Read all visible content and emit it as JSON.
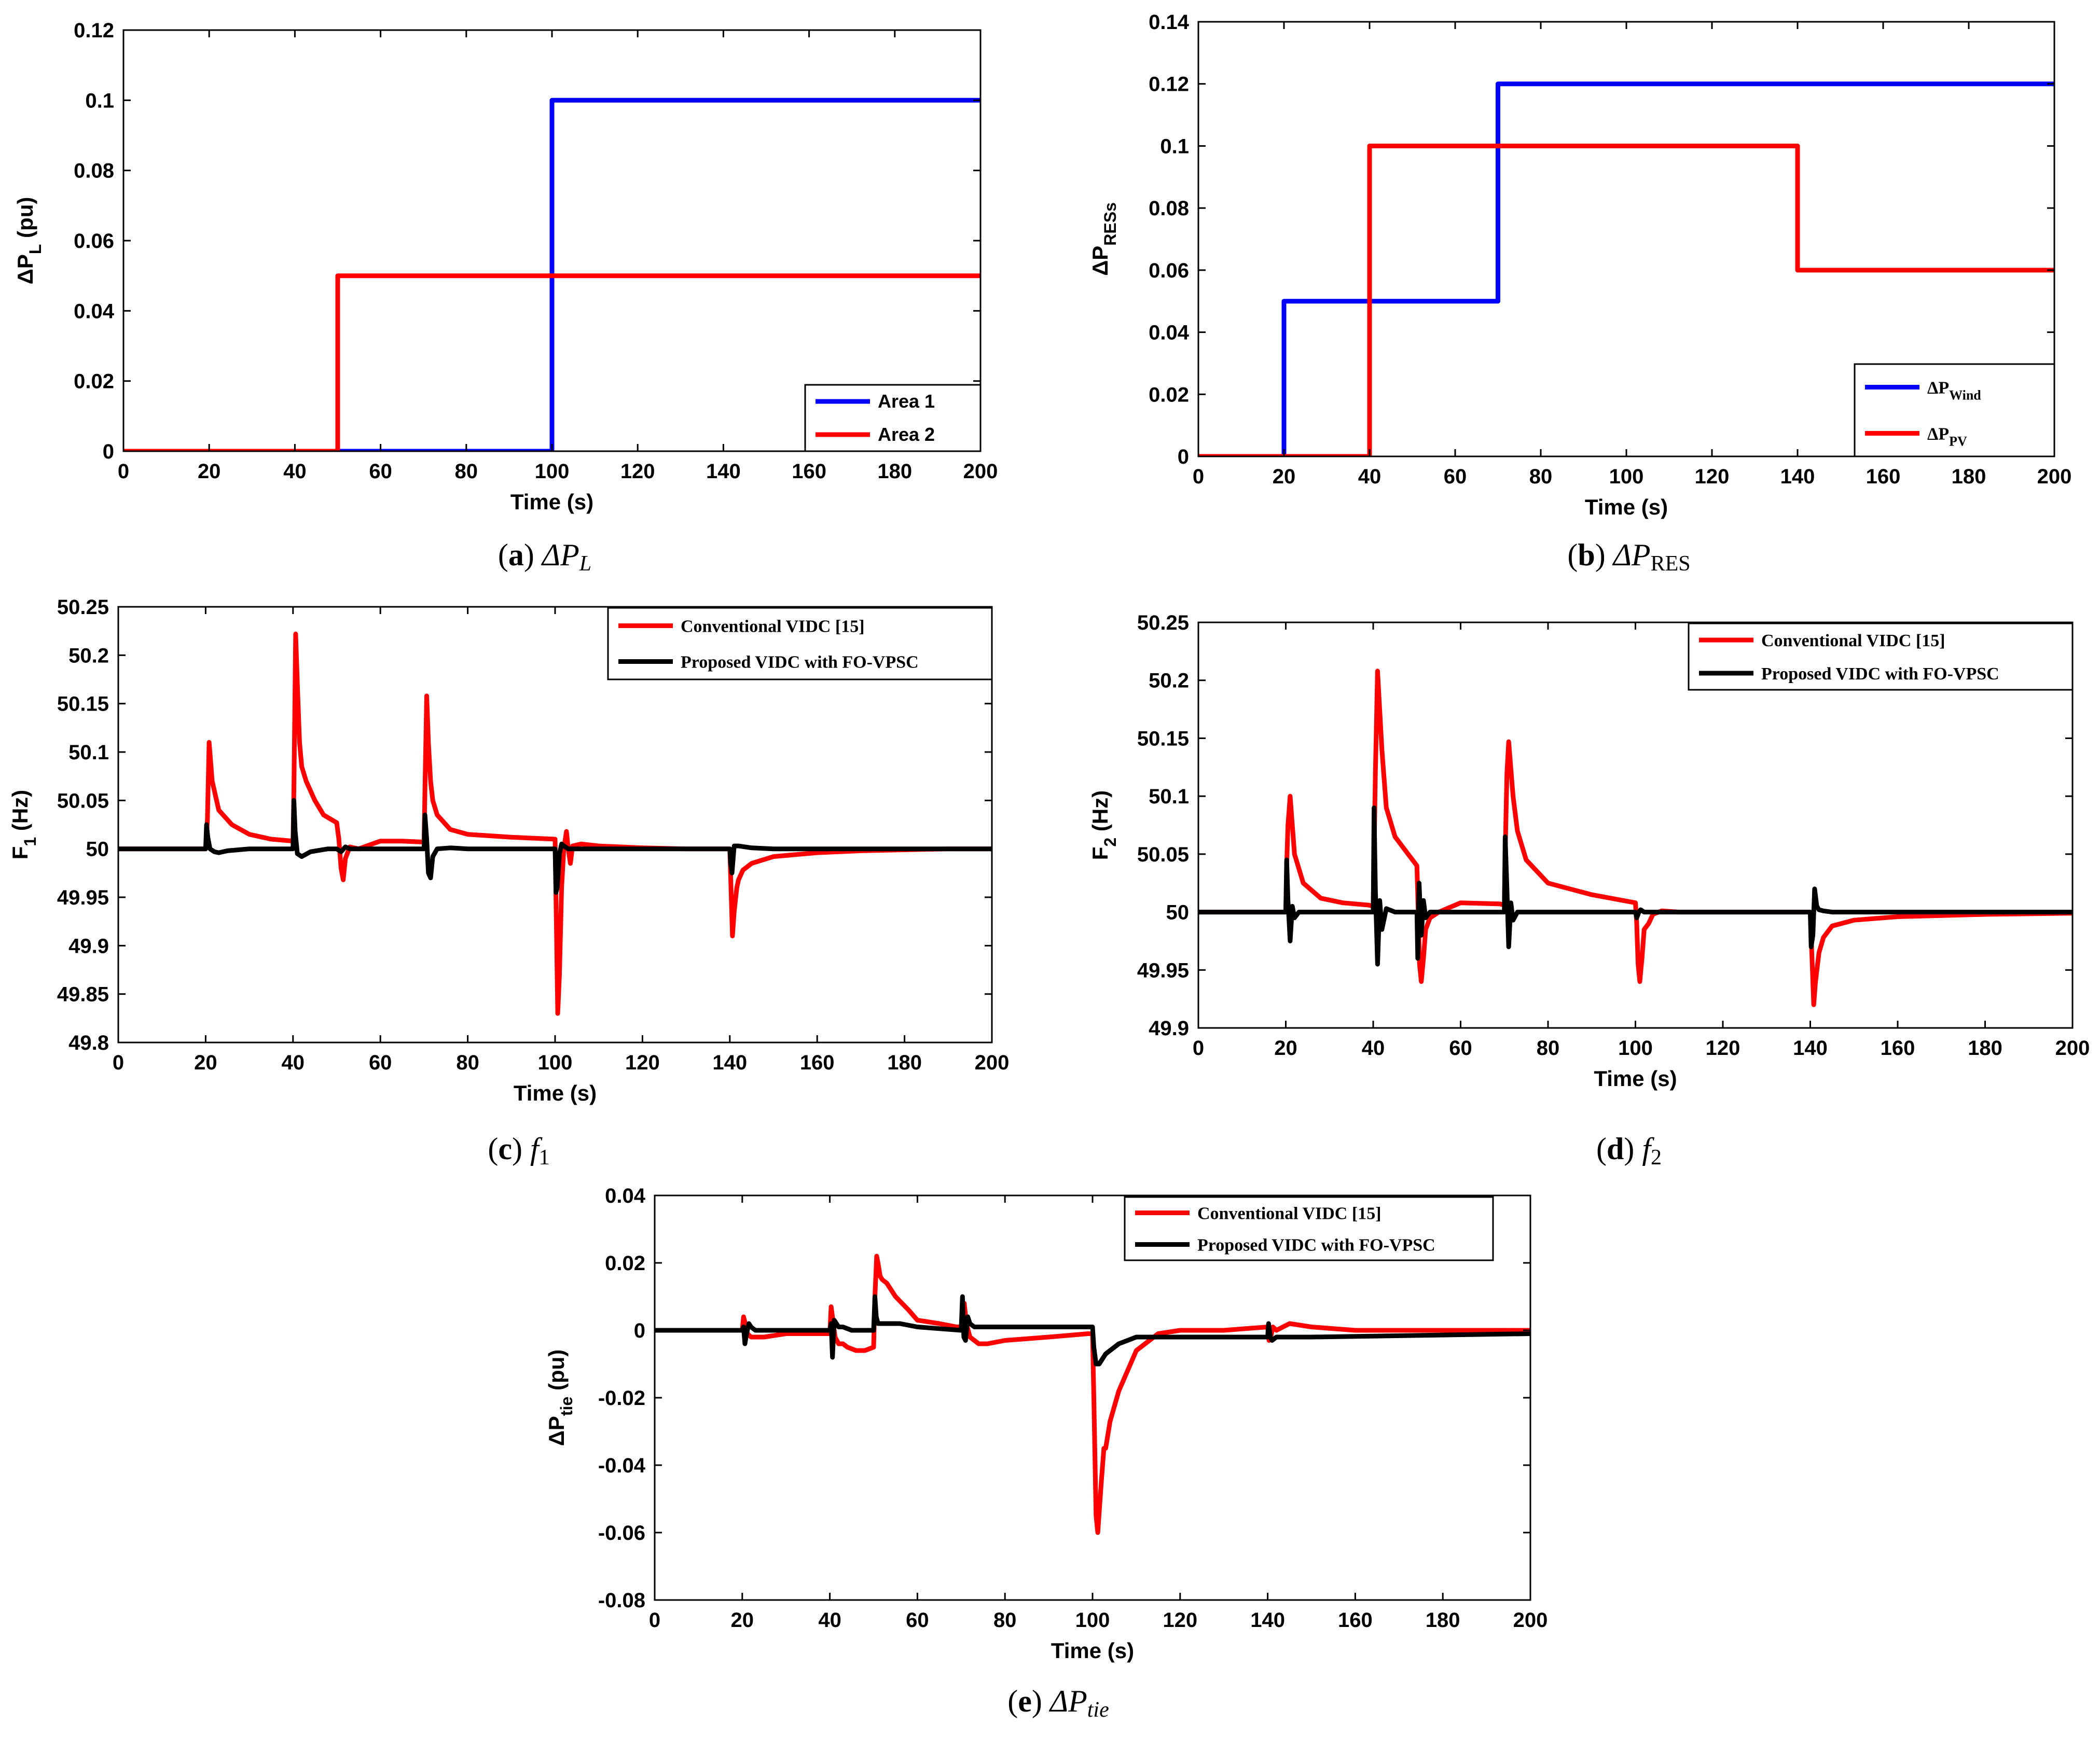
{
  "colors": {
    "red": "#ff0000",
    "blue": "#0000ff",
    "black": "#000000"
  },
  "charts": [
    {
      "id": "a",
      "caption": {
        "letter": "a",
        "math": "ΔP",
        "sub": "L"
      },
      "ylabel": "ΔP",
      "ylabel_sub": "L",
      "ylabel_suffix": " (pu)",
      "xlabel": "Time (s)",
      "xticks": [
        "0",
        "20",
        "40",
        "60",
        "80",
        "100",
        "120",
        "140",
        "160",
        "180",
        "200"
      ],
      "yticks": [
        "0",
        "0.02",
        "0.04",
        "0.06",
        "0.08",
        "0.1",
        "0.12"
      ],
      "legend": [
        {
          "label": "Area 1",
          "color": "blue"
        },
        {
          "label": "Area 2",
          "color": "red"
        }
      ]
    },
    {
      "id": "b",
      "caption": {
        "letter": "b",
        "math": "ΔP",
        "sub": "RES"
      },
      "ylabel": "ΔP",
      "ylabel_sub": "RESs",
      "xlabel": "Time (s)",
      "xticks": [
        "0",
        "20",
        "40",
        "60",
        "80",
        "100",
        "120",
        "140",
        "160",
        "180",
        "200"
      ],
      "yticks": [
        "0",
        "0.02",
        "0.04",
        "0.06",
        "0.08",
        "0.1",
        "0.12",
        "0.14"
      ],
      "legend": [
        {
          "label": "ΔP",
          "sub": "Wind",
          "color": "blue"
        },
        {
          "label": "ΔP",
          "sub": "PV",
          "color": "red"
        }
      ]
    },
    {
      "id": "c",
      "caption": {
        "letter": "c",
        "math": "f",
        "sub": "1"
      },
      "ylabel": "F",
      "ylabel_sub": "1",
      "ylabel_suffix": " (Hz)",
      "xlabel": "Time (s)",
      "xticks": [
        "0",
        "20",
        "40",
        "60",
        "80",
        "100",
        "120",
        "140",
        "160",
        "180",
        "200"
      ],
      "yticks": [
        "49.8",
        "49.85",
        "49.9",
        "49.95",
        "50",
        "50.05",
        "50.1",
        "50.15",
        "50.2",
        "50.25"
      ],
      "legend": [
        {
          "label": "Conventional VIDC [15]",
          "color": "red"
        },
        {
          "label": "Proposed VIDC with FO-VPSC",
          "color": "black"
        }
      ]
    },
    {
      "id": "d",
      "caption": {
        "letter": "d",
        "math": "f",
        "sub": "2"
      },
      "ylabel": "F",
      "ylabel_sub": "2",
      "ylabel_suffix": " (Hz)",
      "xlabel": "Time (s)",
      "xticks": [
        "0",
        "20",
        "40",
        "60",
        "80",
        "100",
        "120",
        "140",
        "160",
        "180",
        "200"
      ],
      "yticks": [
        "49.9",
        "49.95",
        "50",
        "50.05",
        "50.1",
        "50.15",
        "50.2",
        "50.25"
      ],
      "legend": [
        {
          "label": "Conventional VIDC [15]",
          "color": "red"
        },
        {
          "label": "Proposed VIDC with FO-VPSC",
          "color": "black"
        }
      ]
    },
    {
      "id": "e",
      "caption": {
        "letter": "e",
        "math": "ΔP",
        "sub": "tie"
      },
      "ylabel": "ΔP",
      "ylabel_sub": "tie",
      "ylabel_suffix": " (pu)",
      "xlabel": "Time (s)",
      "xticks": [
        "0",
        "20",
        "40",
        "60",
        "80",
        "100",
        "120",
        "140",
        "160",
        "180",
        "200"
      ],
      "yticks": [
        "-0.08",
        "-0.06",
        "-0.04",
        "-0.02",
        "0",
        "0.02",
        "0.04"
      ],
      "legend": [
        {
          "label": "Conventional VIDC [15]",
          "color": "red"
        },
        {
          "label": "Proposed VIDC with FO-VPSC",
          "color": "black"
        }
      ]
    }
  ],
  "chart_data": [
    {
      "type": "line",
      "xlabel": "Time (s)",
      "ylabel": "ΔP_L (pu)",
      "xlim": [
        0,
        200
      ],
      "ylim": [
        0,
        0.12
      ],
      "series": [
        {
          "name": "Area 1",
          "x": [
            0,
            100,
            100,
            200
          ],
          "y": [
            0,
            0,
            0.1,
            0.1
          ]
        },
        {
          "name": "Area 2",
          "x": [
            0,
            50,
            50,
            200
          ],
          "y": [
            0,
            0,
            0.05,
            0.05
          ]
        }
      ]
    },
    {
      "type": "line",
      "xlabel": "Time (s)",
      "ylabel": "ΔP_RESs",
      "xlim": [
        0,
        200
      ],
      "ylim": [
        0,
        0.14
      ],
      "series": [
        {
          "name": "ΔP_Wind",
          "x": [
            0,
            20,
            20,
            70,
            70,
            200
          ],
          "y": [
            0,
            0,
            0.05,
            0.05,
            0.12,
            0.12
          ]
        },
        {
          "name": "ΔP_PV",
          "x": [
            0,
            40,
            40,
            140,
            140,
            200
          ],
          "y": [
            0,
            0,
            0.1,
            0.1,
            0.06,
            0.06
          ]
        }
      ]
    },
    {
      "type": "line",
      "xlabel": "Time (s)",
      "ylabel": "F_1 (Hz)",
      "xlim": [
        0,
        200
      ],
      "ylim": [
        49.8,
        50.25
      ],
      "series": [
        {
          "name": "Conventional VIDC [15]",
          "x": [
            0,
            20,
            20.4,
            20.8,
            21.5,
            23,
            26,
            30,
            35,
            40,
            40.2,
            40.6,
            41,
            41.5,
            42,
            43,
            45,
            47,
            50,
            50.5,
            51,
            51.5,
            52,
            53,
            55,
            60,
            65,
            70,
            70.2,
            70.6,
            71,
            71.5,
            72,
            73,
            76,
            80,
            90,
            100,
            100.2,
            100.6,
            101,
            101.5,
            102,
            102.6,
            103,
            103.5,
            104,
            106,
            110,
            120,
            130,
            140,
            140.2,
            140.6,
            141,
            141.6,
            142,
            143,
            145,
            150,
            160,
            170,
            180,
            190,
            200
          ],
          "y": [
            50,
            50,
            50.03,
            50.11,
            50.07,
            50.04,
            50.025,
            50.015,
            50.01,
            50.008,
            50.06,
            50.222,
            50.17,
            50.11,
            50.085,
            50.07,
            50.05,
            50.035,
            50.027,
            50.01,
            49.98,
            49.968,
            49.99,
            50.002,
            50.0,
            50.008,
            50.008,
            50.007,
            50.06,
            50.158,
            50.11,
            50.07,
            50.05,
            50.035,
            50.02,
            50.015,
            50.012,
            50.01,
            49.95,
            49.83,
            49.87,
            49.96,
            50.0,
            50.018,
            50.0,
            49.985,
            50.003,
            50.005,
            50.003,
            50.001,
            50.0,
            50.0,
            49.97,
            49.91,
            49.935,
            49.96,
            49.968,
            49.978,
            49.985,
            49.992,
            49.996,
            49.998,
            49.999,
            50.0,
            50.0
          ]
        },
        {
          "name": "Proposed VIDC with FO-VPSC",
          "x": [
            0,
            20,
            20.2,
            20.5,
            21,
            22,
            23,
            25,
            30,
            40,
            40.2,
            40.5,
            41,
            42,
            44,
            48,
            50,
            51,
            52,
            53,
            55,
            60,
            70,
            70.2,
            70.6,
            71,
            71.5,
            72,
            73,
            76,
            80,
            100,
            100.2,
            100.5,
            101,
            101.5,
            102,
            103,
            110,
            120,
            140,
            140.2,
            140.5,
            141,
            142,
            145,
            150,
            200
          ],
          "y": [
            50,
            50,
            50.025,
            50.012,
            50.0,
            49.997,
            49.996,
            49.998,
            50.0,
            50.0,
            50.05,
            50.018,
            49.995,
            49.992,
            49.997,
            50.0,
            50.0,
            49.997,
            50.002,
            50.0,
            50.0,
            50.0,
            50.0,
            50.035,
            50.01,
            49.975,
            49.97,
            49.992,
            50.0,
            50.001,
            50.0,
            50.0,
            49.955,
            49.96,
            49.995,
            50.005,
            50.003,
            50.0,
            50.0,
            50.0,
            50.0,
            49.985,
            49.975,
            50.003,
            50.003,
            50.001,
            50.0,
            50.0
          ]
        }
      ]
    },
    {
      "type": "line",
      "xlabel": "Time (s)",
      "ylabel": "F_2 (Hz)",
      "xlim": [
        0,
        200
      ],
      "ylim": [
        49.9,
        50.25
      ],
      "series": [
        {
          "name": "Conventional VIDC [15]",
          "x": [
            0,
            20,
            20.2,
            20.5,
            21,
            22,
            24,
            28,
            33,
            39,
            40,
            40.2,
            40.5,
            41,
            42,
            43,
            45,
            48,
            50,
            50.3,
            50.6,
            51,
            51.5,
            52,
            53,
            55,
            60,
            69,
            70,
            70.2,
            70.6,
            71,
            72,
            73,
            75,
            80,
            90,
            100,
            100.3,
            100.6,
            101,
            101.5,
            102,
            103,
            104,
            106,
            110,
            120,
            139,
            140,
            140.3,
            140.8,
            141.2,
            142,
            143,
            145,
            150,
            160,
            180,
            200
          ],
          "y": [
            50,
            50,
            50.04,
            50.075,
            50.1,
            50.05,
            50.025,
            50.012,
            50.008,
            50.006,
            50.005,
            50.05,
            50.12,
            50.208,
            50.14,
            50.09,
            50.065,
            50.05,
            50.04,
            50.0,
            49.955,
            49.94,
            49.96,
            49.985,
            49.995,
            50.0,
            50.008,
            50.007,
            50.006,
            50.05,
            50.12,
            50.147,
            50.1,
            50.07,
            50.045,
            50.025,
            50.015,
            50.008,
            49.99,
            49.955,
            49.94,
            49.96,
            49.985,
            49.99,
            49.998,
            50.001,
            50.0,
            50.0,
            50.0,
            50.0,
            49.97,
            49.92,
            49.94,
            49.965,
            49.978,
            49.988,
            49.993,
            49.996,
            49.998,
            49.999
          ]
        },
        {
          "name": "Proposed VIDC with FO-VPSC",
          "x": [
            0,
            20,
            20.2,
            20.5,
            21,
            21.5,
            22,
            23,
            25,
            30,
            40,
            40.2,
            40.5,
            41,
            41.5,
            42,
            43,
            45,
            50,
            50.2,
            50.5,
            51,
            51.5,
            52,
            53,
            55,
            70,
            70.2,
            70.6,
            71,
            71.5,
            72,
            73,
            75,
            100,
            100.3,
            100.8,
            101.2,
            102,
            104,
            140,
            140.2,
            140.6,
            141,
            141.5,
            142,
            143,
            145,
            150,
            200
          ],
          "y": [
            50,
            50,
            50.045,
            50.01,
            49.975,
            50.005,
            49.995,
            50.0,
            50.0,
            50.0,
            50.0,
            50.09,
            50.02,
            49.955,
            50.01,
            49.985,
            50.003,
            50.0,
            50.0,
            49.96,
            50.025,
            49.98,
            50.01,
            49.995,
            50.0,
            50.0,
            50.0,
            50.065,
            50.02,
            49.97,
            50.008,
            49.993,
            50.0,
            50.0,
            50.0,
            49.995,
            50.0,
            50.002,
            50.0,
            50.0,
            50.0,
            49.97,
            49.98,
            50.02,
            50.005,
            50.002,
            50.001,
            50.0,
            50.0,
            50.0
          ]
        }
      ]
    },
    {
      "type": "line",
      "xlabel": "Time (s)",
      "ylabel": "ΔP_tie (pu)",
      "xlim": [
        0,
        200
      ],
      "ylim": [
        -0.08,
        0.04
      ],
      "series": [
        {
          "name": "Conventional VIDC [15]",
          "x": [
            0,
            20,
            20.3,
            20.7,
            21.2,
            22,
            25,
            30,
            35,
            40,
            40.3,
            40.7,
            41.2,
            42,
            43,
            44,
            46,
            48,
            50,
            50.3,
            50.7,
            51,
            51.5,
            52,
            53,
            55,
            58,
            60,
            65,
            69,
            70,
            70.3,
            70.7,
            71.2,
            72,
            74,
            76,
            80,
            90,
            99,
            100,
            100.3,
            100.8,
            101.2,
            102,
            102.6,
            103,
            104,
            106,
            110,
            115,
            120,
            130,
            140,
            140.3,
            140.7,
            141.2,
            142,
            145,
            150,
            160,
            170,
            200
          ],
          "y": [
            0,
            0,
            0.004,
            0.002,
            -0.001,
            -0.002,
            -0.002,
            -0.001,
            -0.001,
            -0.001,
            0.007,
            0.003,
            -0.002,
            -0.004,
            -0.004,
            -0.005,
            -0.006,
            -0.006,
            -0.005,
            0.01,
            0.022,
            0.02,
            0.016,
            0.015,
            0.014,
            0.01,
            0.006,
            0.003,
            0.002,
            0.001,
            0.001,
            0.006,
            0.008,
            0.002,
            -0.002,
            -0.004,
            -0.004,
            -0.003,
            -0.002,
            -0.001,
            -0.001,
            -0.02,
            -0.055,
            -0.06,
            -0.045,
            -0.035,
            -0.035,
            -0.027,
            -0.018,
            -0.006,
            -0.001,
            0.0,
            0.0,
            0.001,
            -0.003,
            -0.002,
            0.001,
            0.0,
            0.002,
            0.001,
            0.0,
            0.0,
            0.0
          ]
        },
        {
          "name": "Proposed VIDC with FO-VPSC",
          "x": [
            0,
            20,
            20.3,
            20.6,
            21,
            21.5,
            22,
            23,
            25,
            30,
            40,
            40.3,
            40.6,
            41,
            41.5,
            42,
            43,
            45,
            50,
            50.3,
            50.6,
            51,
            52,
            54,
            56,
            60,
            70,
            70.3,
            70.6,
            71,
            71.5,
            72,
            73,
            75,
            80,
            90,
            100,
            100.3,
            100.8,
            101.5,
            103,
            106,
            110,
            140,
            140.2,
            140.6,
            141,
            142,
            145,
            150,
            200
          ],
          "y": [
            0,
            0,
            0.001,
            -0.004,
            -0.001,
            0.002,
            0.001,
            0.0,
            0.0,
            0.0,
            0.0,
            0.002,
            -0.008,
            0.003,
            0.002,
            0.001,
            0.001,
            0.0,
            0.0,
            0.01,
            0.004,
            0.002,
            0.002,
            0.002,
            0.002,
            0.001,
            0.0,
            0.01,
            -0.002,
            -0.003,
            0.004,
            0.002,
            0.001,
            0.001,
            0.001,
            0.001,
            0.001,
            -0.005,
            -0.01,
            -0.01,
            -0.007,
            -0.004,
            -0.002,
            -0.002,
            0.002,
            -0.002,
            -0.003,
            -0.002,
            -0.002,
            -0.002,
            -0.001
          ]
        }
      ]
    }
  ]
}
